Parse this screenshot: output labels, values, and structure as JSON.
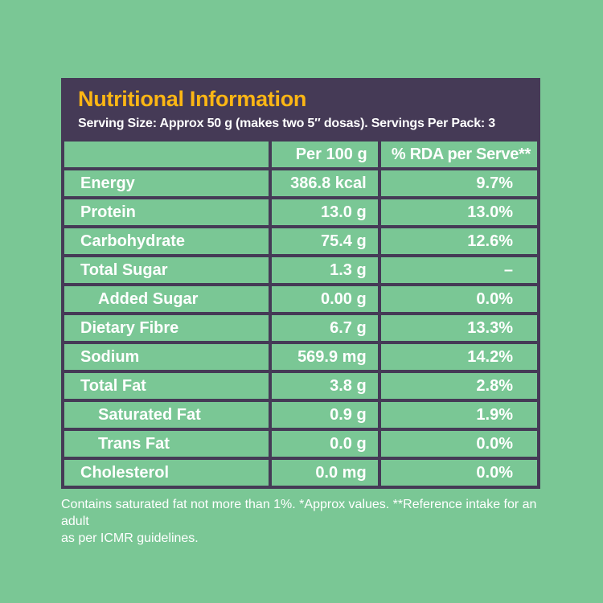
{
  "colors": {
    "background_green": "#7AC795",
    "panel_purple": "#453A56",
    "title_yellow": "#FCB614",
    "text_white": "#FFFFFF"
  },
  "header": {
    "title": "Nutritional Information",
    "subtitle": "Serving Size: Approx 50 g (makes two 5″ dosas). Servings Per Pack: 3"
  },
  "table": {
    "columns": [
      "",
      "Per 100 g",
      "% RDA per Serve**"
    ],
    "rows": [
      {
        "label": "Energy",
        "per100": "386.8 kcal",
        "rda": "9.7%",
        "indent": false
      },
      {
        "label": "Protein",
        "per100": "13.0 g",
        "rda": "13.0%",
        "indent": false
      },
      {
        "label": "Carbohydrate",
        "per100": "75.4 g",
        "rda": "12.6%",
        "indent": false
      },
      {
        "label": "Total Sugar",
        "per100": "1.3 g",
        "rda": "–",
        "indent": false
      },
      {
        "label": "Added Sugar",
        "per100": "0.00 g",
        "rda": "0.0%",
        "indent": true
      },
      {
        "label": "Dietary Fibre",
        "per100": "6.7 g",
        "rda": "13.3%",
        "indent": false
      },
      {
        "label": "Sodium",
        "per100": "569.9 mg",
        "rda": "14.2%",
        "indent": false
      },
      {
        "label": "Total Fat",
        "per100": "3.8 g",
        "rda": "2.8%",
        "indent": false
      },
      {
        "label": "Saturated Fat",
        "per100": "0.9 g",
        "rda": "1.9%",
        "indent": true
      },
      {
        "label": "Trans Fat",
        "per100": "0.0 g",
        "rda": "0.0%",
        "indent": true
      },
      {
        "label": "Cholesterol",
        "per100": "0.0 mg",
        "rda": "0.0%",
        "indent": false
      }
    ]
  },
  "footnote": {
    "line1": "Contains saturated fat not more than 1%. *Approx values. **Reference intake for an adult",
    "line2": "as per ICMR guidelines."
  }
}
